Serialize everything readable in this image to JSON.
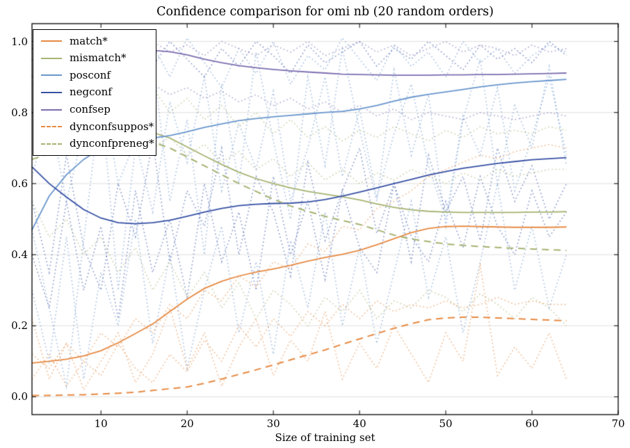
{
  "chart_data": {
    "type": "line",
    "title": "Confidence comparison for omi nb (20 random orders)",
    "xlabel": "Size of training set",
    "ylabel": "",
    "xlim": [
      2,
      70
    ],
    "ylim": [
      -0.05,
      1.05
    ],
    "xticks": [
      10,
      20,
      30,
      40,
      50,
      60,
      70
    ],
    "yticks": [
      0.0,
      0.2,
      0.4,
      0.6,
      0.8,
      1.0
    ],
    "grid": "horizontal-only",
    "grid_color": "#e0e0e0",
    "spine_color": "#000000",
    "legend_position": "upper-left",
    "x_start": 2,
    "x_step": 2,
    "series": [
      {
        "name": "match*",
        "color": "#e78a43",
        "style": "solid",
        "values": [
          0.095,
          0.1,
          0.106,
          0.115,
          0.13,
          0.152,
          0.178,
          0.205,
          0.24,
          0.275,
          0.305,
          0.325,
          0.34,
          0.351,
          0.36,
          0.37,
          0.382,
          0.392,
          0.401,
          0.412,
          0.428,
          0.445,
          0.462,
          0.474,
          0.479,
          0.48,
          0.479,
          0.478,
          0.477,
          0.477,
          0.477,
          0.478
        ]
      },
      {
        "name": "mismatch*",
        "color": "#a5b371",
        "style": "solid",
        "values": [
          0.8,
          0.793,
          0.786,
          0.778,
          0.77,
          0.761,
          0.752,
          0.744,
          0.728,
          0.703,
          0.678,
          0.654,
          0.632,
          0.614,
          0.6,
          0.588,
          0.578,
          0.57,
          0.563,
          0.554,
          0.543,
          0.533,
          0.526,
          0.522,
          0.52,
          0.519,
          0.519,
          0.519,
          0.519,
          0.52,
          0.52,
          0.521
        ]
      },
      {
        "name": "posconf",
        "color": "#6996cd",
        "style": "solid",
        "values": [
          0.47,
          0.565,
          0.625,
          0.668,
          0.7,
          0.72,
          0.729,
          0.728,
          0.735,
          0.746,
          0.758,
          0.768,
          0.777,
          0.783,
          0.788,
          0.792,
          0.796,
          0.8,
          0.803,
          0.81,
          0.82,
          0.832,
          0.843,
          0.851,
          0.858,
          0.865,
          0.872,
          0.878,
          0.883,
          0.887,
          0.89,
          0.893
        ]
      },
      {
        "name": "negconf",
        "color": "#3750a5",
        "style": "solid",
        "values": [
          0.647,
          0.6,
          0.562,
          0.527,
          0.503,
          0.49,
          0.487,
          0.49,
          0.497,
          0.508,
          0.52,
          0.53,
          0.538,
          0.542,
          0.544,
          0.545,
          0.548,
          0.555,
          0.565,
          0.576,
          0.588,
          0.6,
          0.612,
          0.624,
          0.634,
          0.643,
          0.65,
          0.657,
          0.662,
          0.667,
          0.67,
          0.673
        ]
      },
      {
        "name": "confsep",
        "color": "#7d6eb0",
        "style": "solid",
        "values": [
          0.98,
          0.98,
          0.979,
          0.978,
          0.978,
          0.977,
          0.976,
          0.975,
          0.971,
          0.962,
          0.95,
          0.94,
          0.932,
          0.926,
          0.921,
          0.917,
          0.914,
          0.911,
          0.908,
          0.907,
          0.906,
          0.905,
          0.905,
          0.905,
          0.906,
          0.906,
          0.907,
          0.907,
          0.908,
          0.909,
          0.91,
          0.911
        ]
      },
      {
        "name": "dynconfsuppos*",
        "color": "#e78a43",
        "style": "dashed",
        "values": [
          0.004,
          0.004,
          0.005,
          0.006,
          0.008,
          0.01,
          0.013,
          0.018,
          0.023,
          0.028,
          0.038,
          0.05,
          0.063,
          0.076,
          0.09,
          0.104,
          0.118,
          0.132,
          0.148,
          0.163,
          0.178,
          0.193,
          0.206,
          0.217,
          0.222,
          0.224,
          0.224,
          0.222,
          0.22,
          0.218,
          0.216,
          0.214
        ]
      },
      {
        "name": "dynconfpreneg*",
        "color": "#a5b371",
        "style": "dashed",
        "values": [
          0.668,
          0.685,
          0.7,
          0.712,
          0.72,
          0.724,
          0.722,
          0.717,
          0.7,
          0.675,
          0.65,
          0.625,
          0.6,
          0.578,
          0.556,
          0.537,
          0.522,
          0.508,
          0.496,
          0.485,
          0.47,
          0.455,
          0.444,
          0.437,
          0.43,
          0.426,
          0.423,
          0.42,
          0.418,
          0.416,
          0.414,
          0.412
        ]
      }
    ],
    "background_series": [
      {
        "color": "#6996cd",
        "style": "dotted",
        "values": [
          0.47,
          0.25,
          0.03,
          0.44,
          0.85,
          0.3,
          0.7,
          0.95,
          0.55,
          0.78,
          0.4,
          0.88,
          0.6,
          0.97,
          0.72,
          0.5,
          0.9,
          0.65,
          0.98,
          0.75,
          0.55,
          0.92,
          0.68,
          0.85,
          0.48,
          0.78,
          0.95,
          0.6,
          0.82,
          0.7,
          0.93,
          0.65
        ]
      },
      {
        "color": "#6996cd",
        "style": "dotted",
        "values": [
          0.9,
          0.96,
          0.88,
          1.0,
          0.92,
          0.97,
          0.85,
          0.99,
          0.9,
          1.01,
          0.94,
          0.87,
          0.98,
          0.91,
          1.0,
          0.88,
          0.96,
          0.92,
          1.01,
          0.95,
          0.89,
          0.99,
          0.93,
          0.97,
          0.9,
          1.0,
          0.94,
          0.98,
          0.91,
          0.96,
          0.99,
          0.97
        ]
      },
      {
        "color": "#6996cd",
        "style": "dotted",
        "values": [
          0.62,
          0.8,
          0.55,
          0.75,
          0.88,
          0.6,
          0.72,
          0.52,
          0.83,
          0.66,
          0.9,
          0.58,
          0.77,
          0.64,
          0.86,
          0.55,
          0.7,
          0.9,
          0.62,
          0.81,
          0.56,
          0.74,
          0.88,
          0.65,
          0.5,
          0.79,
          0.68,
          0.87,
          0.58,
          0.73,
          0.9,
          0.68
        ]
      },
      {
        "color": "#6996cd",
        "style": "dotted",
        "values": [
          0.3,
          0.1,
          0.45,
          0.05,
          0.35,
          0.2,
          0.5,
          0.15,
          0.4,
          0.08,
          0.3,
          0.48,
          0.18,
          0.38,
          0.12,
          0.44,
          0.25,
          0.52,
          0.2,
          0.42,
          0.15,
          0.35,
          0.55,
          0.28,
          0.45,
          0.18,
          0.38,
          0.6,
          0.3,
          0.48,
          0.25,
          0.4
        ]
      },
      {
        "color": "#3750a5",
        "style": "dotted",
        "values": [
          0.55,
          0.35,
          0.68,
          0.42,
          0.3,
          0.6,
          0.45,
          0.72,
          0.38,
          0.58,
          0.48,
          0.7,
          0.4,
          0.62,
          0.52,
          0.34,
          0.66,
          0.44,
          0.58,
          0.7,
          0.46,
          0.6,
          0.38,
          0.68,
          0.52,
          0.62,
          0.44,
          0.7,
          0.55,
          0.65,
          0.5,
          0.6
        ]
      },
      {
        "color": "#3750a5",
        "style": "dotted",
        "values": [
          0.95,
          0.88,
          0.99,
          0.92,
          1.0,
          0.9,
          0.97,
          0.93,
          1.0,
          0.95,
          0.9,
          0.98,
          0.93,
          1.0,
          0.96,
          0.91,
          0.99,
          0.94,
          0.97,
          1.0,
          0.93,
          0.98,
          0.95,
          1.0,
          0.96,
          0.92,
          0.99,
          0.95,
          0.98,
          0.94,
          1.0,
          0.96
        ]
      },
      {
        "color": "#3750a5",
        "style": "dotted",
        "values": [
          0.4,
          0.25,
          0.55,
          0.3,
          0.48,
          0.22,
          0.58,
          0.35,
          0.5,
          0.28,
          0.6,
          0.38,
          0.52,
          0.3,
          0.62,
          0.4,
          0.55,
          0.33,
          0.58,
          0.42,
          0.35,
          0.6,
          0.45,
          0.38,
          0.55,
          0.42,
          0.62,
          0.48,
          0.4,
          0.58,
          0.45,
          0.52
        ]
      },
      {
        "color": "#a5b371",
        "style": "dotted",
        "values": [
          0.93,
          0.96,
          0.88,
          0.92,
          0.85,
          0.9,
          0.83,
          0.87,
          0.8,
          0.84,
          0.78,
          0.82,
          0.76,
          0.8,
          0.74,
          0.78,
          0.73,
          0.76,
          0.72,
          0.75,
          0.73,
          0.76,
          0.74,
          0.72,
          0.75,
          0.73,
          0.76,
          0.74,
          0.75,
          0.74,
          0.76,
          0.75
        ]
      },
      {
        "color": "#a5b371",
        "style": "dotted",
        "values": [
          0.88,
          0.8,
          0.85,
          0.75,
          0.8,
          0.72,
          0.76,
          0.7,
          0.73,
          0.68,
          0.71,
          0.66,
          0.69,
          0.64,
          0.67,
          0.62,
          0.66,
          0.61,
          0.64,
          0.6,
          0.63,
          0.61,
          0.64,
          0.62,
          0.6,
          0.63,
          0.61,
          0.64,
          0.62,
          0.63,
          0.64,
          0.64
        ]
      },
      {
        "color": "#a5b371",
        "style": "dotted",
        "values": [
          0.55,
          0.45,
          0.5,
          0.4,
          0.45,
          0.35,
          0.42,
          0.3,
          0.38,
          0.28,
          0.35,
          0.25,
          0.32,
          0.22,
          0.3,
          0.26,
          0.2,
          0.28,
          0.24,
          0.3,
          0.22,
          0.27,
          0.25,
          0.3,
          0.28,
          0.24,
          0.29,
          0.26,
          0.22,
          0.28,
          0.25,
          0.2
        ]
      },
      {
        "color": "#e78a43",
        "style": "dotted",
        "values": [
          0.12,
          0.08,
          0.15,
          0.1,
          0.18,
          0.14,
          0.22,
          0.18,
          0.26,
          0.22,
          0.3,
          0.27,
          0.34,
          0.31,
          0.38,
          0.36,
          0.43,
          0.41,
          0.48,
          0.47,
          0.53,
          0.55,
          0.58,
          0.62,
          0.64,
          0.66,
          0.68,
          0.67,
          0.69,
          0.7,
          0.71,
          0.7
        ]
      },
      {
        "color": "#e78a43",
        "style": "dotted",
        "values": [
          0.22,
          0.05,
          0.15,
          0.02,
          0.1,
          0.18,
          0.04,
          0.12,
          0.25,
          0.08,
          0.18,
          0.03,
          0.14,
          0.22,
          0.06,
          0.16,
          0.1,
          0.24,
          0.05,
          0.15,
          0.08,
          0.2,
          0.12,
          0.04,
          0.18,
          0.1,
          0.37,
          0.06,
          0.14,
          0.08,
          0.18,
          0.05
        ]
      },
      {
        "color": "#e78a43",
        "style": "dotted",
        "values": [
          0.05,
          0.12,
          0.03,
          0.1,
          0.06,
          0.15,
          0.08,
          0.04,
          0.12,
          0.07,
          0.16,
          0.1,
          0.2,
          0.14,
          0.22,
          0.17,
          0.24,
          0.2,
          0.26,
          0.22,
          0.27,
          0.24,
          0.26,
          0.25,
          0.27,
          0.25,
          0.26,
          0.28,
          0.26,
          0.27,
          0.26,
          0.26
        ]
      },
      {
        "color": "#7d6eb0",
        "style": "dotted",
        "values": [
          0.99,
          0.96,
          1.0,
          0.97,
          1.01,
          0.98,
          0.96,
          1.0,
          0.97,
          0.99,
          0.96,
          1.0,
          0.98,
          0.96,
          0.99,
          0.97,
          1.0,
          0.96,
          0.98,
          1.0,
          0.97,
          0.99,
          0.96,
          0.98,
          1.0,
          0.97,
          0.99,
          0.98,
          0.96,
          0.99,
          0.97,
          0.98
        ]
      },
      {
        "color": "#7d6eb0",
        "style": "dotted",
        "values": [
          0.9,
          0.93,
          0.88,
          0.91,
          0.87,
          0.9,
          0.86,
          0.88,
          0.85,
          0.87,
          0.84,
          0.86,
          0.83,
          0.85,
          0.82,
          0.84,
          0.81,
          0.83,
          0.8,
          0.82,
          0.79,
          0.81,
          0.78,
          0.8,
          0.79,
          0.78,
          0.8,
          0.79,
          0.78,
          0.79,
          0.8,
          0.79
        ]
      }
    ]
  }
}
